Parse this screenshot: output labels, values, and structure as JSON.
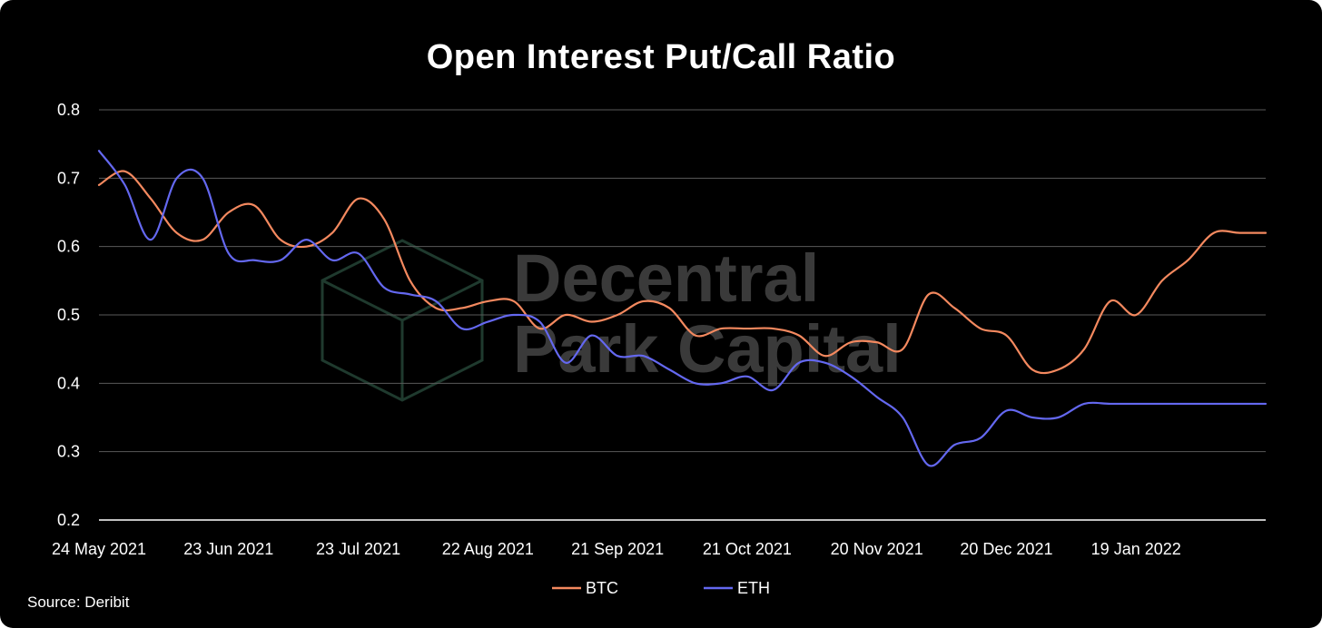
{
  "chart_data": {
    "type": "line",
    "title": "Open Interest Put/Call Ratio",
    "source": "Source: Deribit",
    "watermark": [
      "Decentral",
      "Park Capital"
    ],
    "ylim": [
      0.2,
      0.8
    ],
    "yticks": [
      0.2,
      0.3,
      0.4,
      0.5,
      0.6,
      0.7,
      0.8
    ],
    "ytick_labels": [
      "0.2",
      "0.3",
      "0.4",
      "0.5",
      "0.6",
      "0.7",
      "0.8"
    ],
    "grid": true,
    "xlim": [
      "2021-05-24",
      "2022-02-18"
    ],
    "xticks": [
      "2021-05-24",
      "2021-06-23",
      "2021-07-23",
      "2021-08-22",
      "2021-09-21",
      "2021-10-21",
      "2021-11-20",
      "2021-12-20",
      "2022-01-19"
    ],
    "xtick_labels": [
      "24 May 2021",
      "23 Jun 2021",
      "23 Jul 2021",
      "22 Aug 2021",
      "21 Sep 2021",
      "21 Oct 2021",
      "20 Nov 2021",
      "20 Dec 2021",
      "19 Jan 2022"
    ],
    "legend_position": "bottom-center",
    "series": [
      {
        "name": "BTC",
        "color": "#f4895f",
        "x": [
          "2021-05-24",
          "2021-05-30",
          "2021-06-05",
          "2021-06-11",
          "2021-06-17",
          "2021-06-23",
          "2021-06-29",
          "2021-07-05",
          "2021-07-11",
          "2021-07-17",
          "2021-07-23",
          "2021-07-29",
          "2021-08-04",
          "2021-08-10",
          "2021-08-16",
          "2021-08-22",
          "2021-08-28",
          "2021-09-03",
          "2021-09-09",
          "2021-09-15",
          "2021-09-21",
          "2021-09-27",
          "2021-10-03",
          "2021-10-09",
          "2021-10-15",
          "2021-10-21",
          "2021-10-27",
          "2021-11-02",
          "2021-11-08",
          "2021-11-14",
          "2021-11-20",
          "2021-11-26",
          "2021-12-02",
          "2021-12-08",
          "2021-12-14",
          "2021-12-20",
          "2021-12-26",
          "2022-01-01",
          "2022-01-07",
          "2022-01-13",
          "2022-01-19",
          "2022-01-25",
          "2022-01-31",
          "2022-02-06",
          "2022-02-12",
          "2022-02-18"
        ],
        "values": [
          0.69,
          0.71,
          0.67,
          0.62,
          0.61,
          0.65,
          0.66,
          0.61,
          0.6,
          0.62,
          0.67,
          0.64,
          0.55,
          0.51,
          0.51,
          0.52,
          0.52,
          0.48,
          0.5,
          0.49,
          0.5,
          0.52,
          0.51,
          0.47,
          0.48,
          0.48,
          0.48,
          0.47,
          0.44,
          0.46,
          0.46,
          0.45,
          0.53,
          0.51,
          0.48,
          0.47,
          0.42,
          0.42,
          0.45,
          0.52,
          0.5,
          0.55,
          0.58,
          0.62,
          0.62,
          0.62
        ]
      },
      {
        "name": "ETH",
        "color": "#6468f0",
        "x": [
          "2021-05-24",
          "2021-05-30",
          "2021-06-05",
          "2021-06-11",
          "2021-06-17",
          "2021-06-23",
          "2021-06-29",
          "2021-07-05",
          "2021-07-11",
          "2021-07-17",
          "2021-07-23",
          "2021-07-29",
          "2021-08-04",
          "2021-08-10",
          "2021-08-16",
          "2021-08-22",
          "2021-08-28",
          "2021-09-03",
          "2021-09-09",
          "2021-09-15",
          "2021-09-21",
          "2021-09-27",
          "2021-10-03",
          "2021-10-09",
          "2021-10-15",
          "2021-10-21",
          "2021-10-27",
          "2021-11-02",
          "2021-11-08",
          "2021-11-14",
          "2021-11-20",
          "2021-11-26",
          "2021-12-02",
          "2021-12-08",
          "2021-12-14",
          "2021-12-20",
          "2021-12-26",
          "2022-01-01",
          "2022-01-07",
          "2022-01-13",
          "2022-01-19",
          "2022-01-25",
          "2022-01-31",
          "2022-02-06",
          "2022-02-12",
          "2022-02-18"
        ],
        "values": [
          0.74,
          0.69,
          0.61,
          0.7,
          0.7,
          0.59,
          0.58,
          0.58,
          0.61,
          0.58,
          0.59,
          0.54,
          0.53,
          0.52,
          0.48,
          0.49,
          0.5,
          0.49,
          0.43,
          0.47,
          0.44,
          0.44,
          0.42,
          0.4,
          0.4,
          0.41,
          0.39,
          0.43,
          0.43,
          0.41,
          0.38,
          0.35,
          0.28,
          0.31,
          0.32,
          0.36,
          0.35,
          0.35,
          0.37,
          0.37,
          0.37,
          0.37,
          0.37,
          0.37,
          0.37,
          0.37
        ]
      }
    ]
  }
}
